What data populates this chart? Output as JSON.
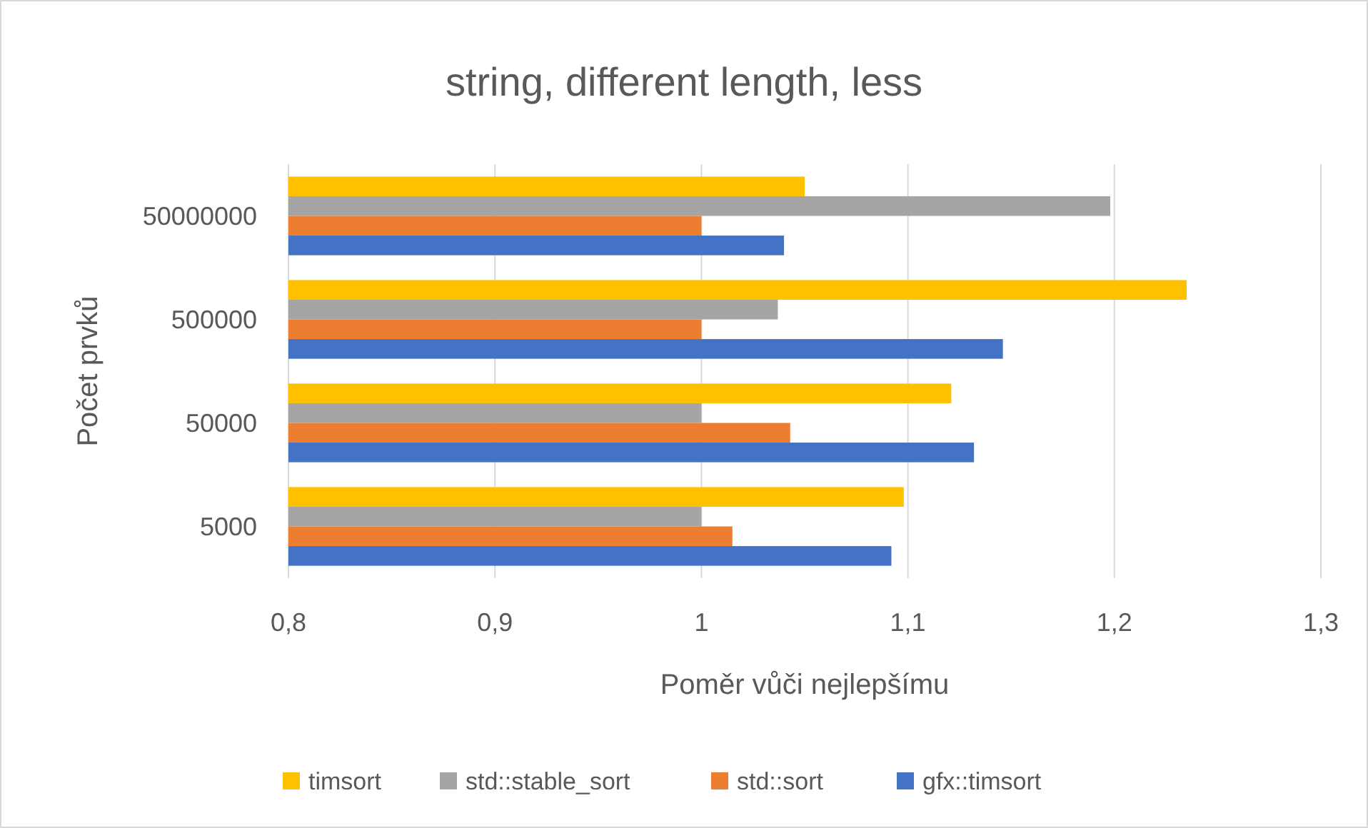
{
  "chart_data": {
    "type": "bar",
    "orientation": "horizontal",
    "title": "string, different length, less",
    "xlabel": "Poměr vůči nejlepšímu",
    "ylabel": "Počet prvků",
    "categories": [
      "50000000",
      "500000",
      "50000",
      "5000"
    ],
    "series": [
      {
        "name": "timsort",
        "color": "#ffc000",
        "values": [
          1.05,
          1.235,
          1.121,
          1.098
        ]
      },
      {
        "name": "std::stable_sort",
        "color": "#a5a5a5",
        "values": [
          1.198,
          1.037,
          1.0,
          1.0
        ]
      },
      {
        "name": "std::sort",
        "color": "#ed7d31",
        "values": [
          1.0,
          1.0,
          1.043,
          1.015
        ]
      },
      {
        "name": "gfx::timsort",
        "color": "#4472c4",
        "values": [
          1.04,
          1.146,
          1.132,
          1.092
        ]
      }
    ],
    "xlim": [
      0.8,
      1.3
    ],
    "xticks": [
      {
        "value": 0.8,
        "label": "0,8"
      },
      {
        "value": 0.9,
        "label": "0,9"
      },
      {
        "value": 1,
        "label": "1"
      },
      {
        "value": 1.1,
        "label": "1,1"
      },
      {
        "value": 1.2,
        "label": "1,2"
      },
      {
        "value": 1.3,
        "label": "1,3"
      }
    ],
    "grid": "x",
    "legend": "bottom"
  }
}
